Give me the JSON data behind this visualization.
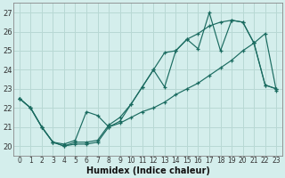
{
  "xlabel": "Humidex (Indice chaleur)",
  "bg_color": "#d4eeec",
  "line_color": "#1a6b60",
  "grid_color": "#b8d8d4",
  "xlim": [
    -0.5,
    23.5
  ],
  "ylim": [
    19.5,
    27.5
  ],
  "yticks": [
    20,
    21,
    22,
    23,
    24,
    25,
    26,
    27
  ],
  "xticks": [
    0,
    1,
    2,
    3,
    4,
    5,
    6,
    7,
    8,
    9,
    10,
    11,
    12,
    13,
    14,
    15,
    16,
    17,
    18,
    19,
    20,
    21,
    22,
    23
  ],
  "line1_x": [
    0,
    1,
    2,
    3,
    4,
    5,
    6,
    7,
    8,
    9,
    10,
    11,
    12,
    13,
    14,
    15,
    16,
    17,
    18,
    19,
    20,
    21,
    22,
    23
  ],
  "line1_y": [
    22.5,
    22.0,
    21.0,
    20.2,
    20.0,
    20.1,
    20.1,
    20.2,
    21.0,
    21.3,
    22.2,
    23.1,
    24.0,
    24.9,
    25.0,
    25.6,
    25.9,
    26.3,
    26.5,
    26.6,
    26.5,
    25.4,
    23.2,
    23.0
  ],
  "line2_x": [
    0,
    1,
    2,
    3,
    4,
    5,
    6,
    7,
    8,
    9,
    10,
    11,
    12,
    13,
    14,
    15,
    16,
    17,
    18,
    19,
    20,
    21,
    22,
    23
  ],
  "line2_y": [
    22.5,
    22.0,
    21.0,
    20.2,
    20.0,
    20.2,
    20.2,
    20.3,
    21.1,
    21.5,
    22.2,
    23.1,
    24.0,
    23.1,
    25.0,
    25.6,
    25.1,
    27.0,
    25.0,
    26.6,
    26.5,
    25.4,
    23.2,
    23.0
  ],
  "line3_x": [
    0,
    1,
    2,
    3,
    4,
    5,
    6,
    7,
    8,
    9,
    10,
    11,
    12,
    13,
    14,
    15,
    16,
    17,
    18,
    19,
    20,
    21,
    22,
    23
  ],
  "line3_y": [
    22.5,
    22.0,
    21.0,
    20.2,
    20.1,
    20.3,
    21.8,
    21.6,
    21.0,
    21.2,
    21.5,
    21.8,
    22.0,
    22.3,
    22.7,
    23.0,
    23.3,
    23.7,
    24.1,
    24.5,
    25.0,
    25.4,
    25.9,
    22.9
  ]
}
